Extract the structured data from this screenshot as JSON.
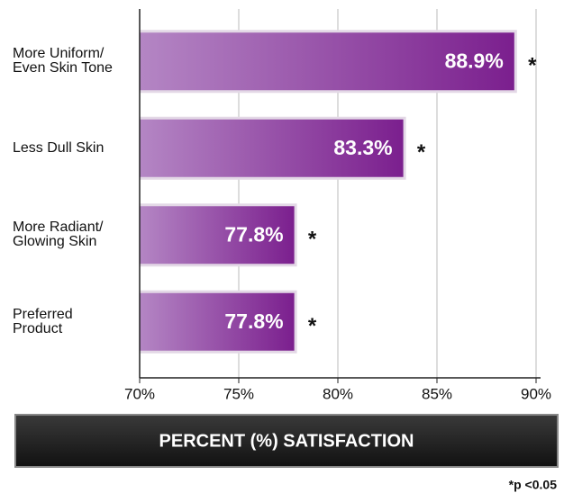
{
  "chart_data": {
    "type": "bar",
    "orientation": "horizontal",
    "categories": [
      "More Uniform/\nEven Skin Tone",
      "Less Dull Skin",
      "More Radiant/\nGlowing Skin",
      "Preferred\nProduct"
    ],
    "values": [
      88.9,
      83.3,
      77.8,
      77.8
    ],
    "value_labels": [
      "88.9%",
      "83.3%",
      "77.8%",
      "77.8%"
    ],
    "annotations": [
      "*",
      "*",
      "*",
      "*"
    ],
    "color": "#7b1f8e",
    "xlim": [
      70,
      90
    ],
    "xticks": [
      {
        "value": 70,
        "label": "70%"
      },
      {
        "value": 75,
        "label": "75%"
      },
      {
        "value": 80,
        "label": "80%"
      },
      {
        "value": 85,
        "label": "85%"
      },
      {
        "value": 90,
        "label": "90%"
      }
    ],
    "grid": true,
    "xlabel": "PERCENT (%) SATISFACTION",
    "footnote": "*p <0.05"
  }
}
